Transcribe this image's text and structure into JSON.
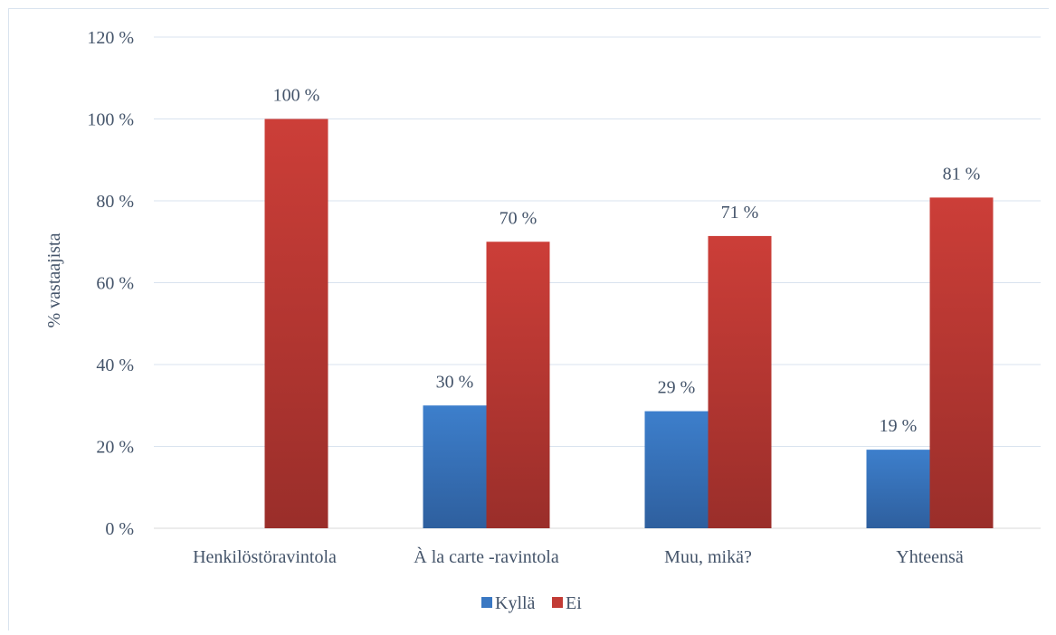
{
  "chart_data": {
    "type": "bar",
    "title": "",
    "xlabel": "",
    "ylabel": "% vastaajista",
    "ylim": [
      0,
      120
    ],
    "yticks": [
      0,
      20,
      40,
      60,
      80,
      100,
      120
    ],
    "ytick_labels": [
      "0 %",
      "20 %",
      "40 %",
      "60 %",
      "80 %",
      "100 %",
      "120 %"
    ],
    "categories": [
      "Henkilöstöravintola",
      "À la carte -ravintola",
      "Muu, mikä?",
      "Yhteensä"
    ],
    "series": [
      {
        "name": "Kyllä",
        "color": "#3a78c3",
        "values": [
          0,
          30,
          28.6,
          19.2
        ],
        "labels": [
          "",
          "30 %",
          "29 %",
          "19 %"
        ]
      },
      {
        "name": "Ei",
        "color": "#c23b35",
        "values": [
          100,
          70,
          71.4,
          80.8
        ],
        "labels": [
          "100 %",
          "70 %",
          "71 %",
          "81 %"
        ]
      }
    ],
    "grid": true,
    "legend_position": "bottom"
  }
}
